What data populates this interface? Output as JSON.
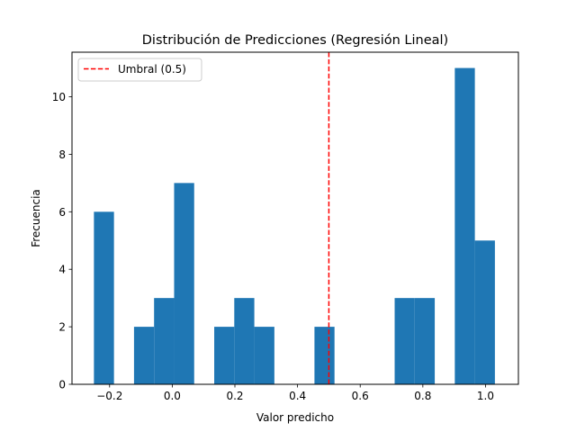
{
  "chart_data": {
    "type": "bar",
    "title": "Distribución de Predicciones (Regresión Lineal)",
    "xlabel": "Valor predicho",
    "ylabel": "Frecuencia",
    "xlim": [
      -0.32,
      1.105
    ],
    "ylim": [
      0,
      11.55
    ],
    "xticks": [
      -0.2,
      0.0,
      0.2,
      0.4,
      0.6,
      0.8,
      1.0
    ],
    "xtick_labels": [
      "−0.2",
      "0.0",
      "0.2",
      "0.4",
      "0.6",
      "0.8",
      "1.0"
    ],
    "yticks": [
      0,
      2,
      4,
      6,
      8,
      10
    ],
    "ytick_labels": [
      "0",
      "2",
      "4",
      "6",
      "8",
      "10"
    ],
    "grid": false,
    "bar_color": "#1f77b4",
    "bins": [
      {
        "x0": -0.25,
        "x1": -0.186,
        "count": 6
      },
      {
        "x0": -0.122,
        "x1": -0.058,
        "count": 2
      },
      {
        "x0": -0.058,
        "x1": 0.006,
        "count": 3
      },
      {
        "x0": 0.006,
        "x1": 0.07,
        "count": 7
      },
      {
        "x0": 0.134,
        "x1": 0.198,
        "count": 2
      },
      {
        "x0": 0.198,
        "x1": 0.262,
        "count": 3
      },
      {
        "x0": 0.262,
        "x1": 0.326,
        "count": 2
      },
      {
        "x0": 0.454,
        "x1": 0.518,
        "count": 2
      },
      {
        "x0": 0.71,
        "x1": 0.774,
        "count": 3
      },
      {
        "x0": 0.774,
        "x1": 0.838,
        "count": 3
      },
      {
        "x0": 0.902,
        "x1": 0.966,
        "count": 11
      },
      {
        "x0": 0.966,
        "x1": 1.03,
        "count": 5
      }
    ],
    "threshold": {
      "value": 0.5,
      "label": "Umbral (0.5)",
      "color": "#ff0000"
    },
    "legend": {
      "position": "top-left",
      "entries": [
        "Umbral (0.5)"
      ]
    }
  }
}
